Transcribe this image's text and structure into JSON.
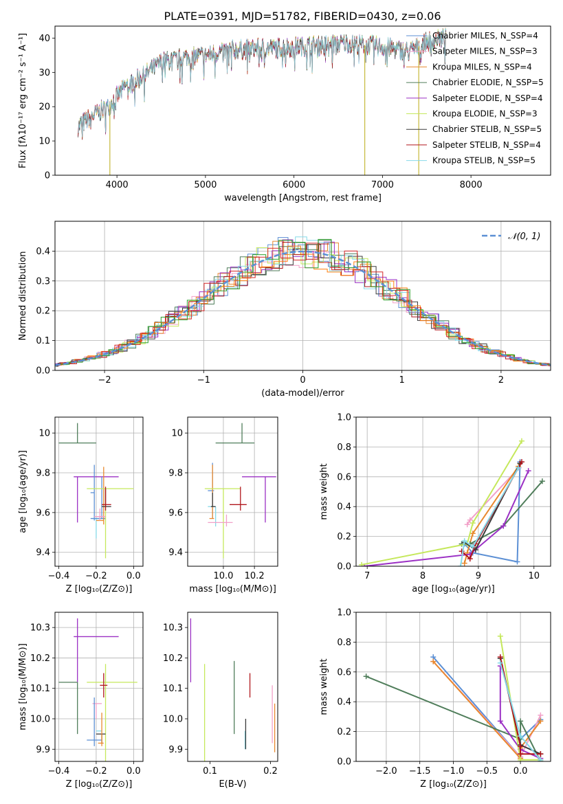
{
  "figure": {
    "title": "PLATE=0391, MJD=51782, FIBERID=0430, z=0.06"
  },
  "colors": {
    "models": [
      "#1f77b4",
      "#e377c2",
      "#ff7f0e",
      "#2ca02c",
      "#9467bd",
      "#bcbd22",
      "#17becf",
      "#8c564b",
      "#d62728",
      "#7f7f7f",
      "#5b8fd4",
      "#f2a0c8",
      "#e8892e",
      "#4f7d5a",
      "#9b30c4",
      "#c5e85b",
      "#3a3a3a",
      "#b0161c",
      "#85d9e8"
    ],
    "gaussian": "#5b8fd4",
    "grid": "#b0b0b0"
  },
  "chart_data": [
    {
      "id": "spectrum",
      "type": "line",
      "xlabel": "wavelength [Angstrom, rest frame]",
      "ylabel": "Flux [fλ10⁻¹⁷ erg cm⁻² s⁻¹ A⁻¹]",
      "xlim": [
        3300,
        8900
      ],
      "ylim": [
        0,
        43.5
      ],
      "xticks": [
        4000,
        5000,
        6000,
        7000,
        8000
      ],
      "yticks": [
        0,
        10,
        20,
        30,
        40
      ],
      "grid": false,
      "legend_position": "top-right",
      "legend": [
        "Chabrier MILES, N_SSP=4",
        "Salpeter MILES, N_SSP=3",
        "Kroupa MILES, N_SSP=4",
        "Chabrier ELODIE, N_SSP=5",
        "Salpeter ELODIE, N_SSP=4",
        "Kroupa ELODIE, N_SSP=3",
        "Chabrier STELIB, N_SSP=5",
        "Salpeter STELIB, N_SSP=4",
        "Kroupa STELIB, N_SSP=5"
      ],
      "legend_colors": [
        "#5b8fd4",
        "#f2a0c8",
        "#e8892e",
        "#4f7d5a",
        "#9b30c4",
        "#c5e85b",
        "#3a3a3a",
        "#b0161c",
        "#85d9e8"
      ],
      "continuum_x": [
        3550,
        3700,
        3900,
        4100,
        4300,
        4500,
        4800,
        5000,
        5300,
        5600,
        6000,
        6300,
        6600,
        7000,
        7300,
        7500,
        7700
      ],
      "continuum_y": [
        14,
        17,
        20,
        26,
        29,
        33,
        34.5,
        35,
        36.5,
        37,
        37.5,
        38,
        38.5,
        37.5,
        36,
        39,
        40
      ],
      "dips": [
        {
          "x": 3920,
          "y": 0
        },
        {
          "x": 6800,
          "y": 0
        },
        {
          "x": 7410,
          "y": 0
        }
      ]
    },
    {
      "id": "residuals",
      "type": "line",
      "xlabel": "(data-model)/error",
      "ylabel": "Normed distribution",
      "xlim": [
        -2.5,
        2.5
      ],
      "ylim": [
        0,
        0.5
      ],
      "xticks": [
        -2,
        -1,
        0,
        1,
        2
      ],
      "xticklabels": [
        "−2",
        "−1",
        "0",
        "1",
        "2"
      ],
      "yticks": [
        0,
        0.1,
        0.2,
        0.3,
        0.4
      ],
      "yticklabels": [
        "0.0",
        "0.1",
        "0.2",
        "0.3",
        "0.4"
      ],
      "grid": true,
      "legend_position": "top-right",
      "legend": [
        "𝒩(0, 1)"
      ],
      "note": "step histograms, one per model, plus dashed standard normal"
    },
    {
      "id": "age-vs-Z",
      "type": "scatter",
      "xlabel": "Z [log₁₀(Z/Z⊙)]",
      "ylabel": "age  [log₁₀(age/yr)]",
      "xlim": [
        -0.42,
        0.05
      ],
      "ylim": [
        9.33,
        10.08
      ],
      "xticks": [
        -0.4,
        -0.2,
        0.0
      ],
      "xticklabels": [
        "−0.4",
        "−0.2",
        "0.0"
      ],
      "yticks": [
        9.4,
        9.6,
        9.8,
        10.0
      ],
      "grid": true,
      "points": [
        {
          "x": -0.3,
          "y": 9.95,
          "xerr": [
            0.1,
            0.1
          ],
          "yerr": [
            0.0,
            0.1
          ],
          "c": "#4f7d5a"
        },
        {
          "x": -0.3,
          "y": 9.78,
          "xerr": [
            0.02,
            0.22
          ],
          "yerr": [
            0.23,
            0.0
          ],
          "c": "#9b30c4"
        },
        {
          "x": -0.21,
          "y": 9.7,
          "xerr": [
            0.02,
            0.0
          ],
          "yerr": [
            0.14,
            0.14
          ],
          "c": "#5b8fd4"
        },
        {
          "x": -0.2,
          "y": 9.57,
          "xerr": [
            0.02,
            0.05
          ],
          "yerr": [
            0.1,
            0.0
          ],
          "c": "#85d9e8"
        },
        {
          "x": -0.17,
          "y": 9.57,
          "xerr": [
            0.06,
            0.02
          ],
          "yerr": [
            0.0,
            0.21
          ],
          "c": "#5b8fd4"
        },
        {
          "x": -0.16,
          "y": 9.56,
          "xerr": [
            0.04,
            0.0
          ],
          "yerr": [
            0.02,
            0.27
          ],
          "c": "#e8892e"
        },
        {
          "x": -0.15,
          "y": 9.72,
          "xerr": [
            0.1,
            0.15
          ],
          "yerr": [
            0.35,
            0.0
          ],
          "c": "#c5e85b"
        },
        {
          "x": -0.15,
          "y": 9.63,
          "xerr": [
            0.02,
            0.03
          ],
          "yerr": [
            0.0,
            0.09
          ],
          "c": "#3a3a3a"
        },
        {
          "x": -0.15,
          "y": 9.64,
          "xerr": [
            0.02,
            0.03
          ],
          "yerr": [
            0.03,
            0.09
          ],
          "c": "#b0161c"
        },
        {
          "x": -0.18,
          "y": 9.58,
          "xerr": [
            0.03,
            0.03
          ],
          "yerr": [
            0.02,
            0.04
          ],
          "c": "#f2a0c8"
        }
      ]
    },
    {
      "id": "age-vs-mass",
      "type": "scatter",
      "xlabel": "mass [log₁₀(M/M⊙)]",
      "ylabel": "",
      "xlim": [
        9.77,
        10.35
      ],
      "ylim": [
        9.33,
        10.08
      ],
      "xticks": [
        10.0,
        10.2
      ],
      "xticklabels": [
        "10.0",
        "10.2"
      ],
      "yticks": [
        9.4,
        9.6,
        9.8,
        10.0
      ],
      "grid": true,
      "points": [
        {
          "x": 10.12,
          "y": 9.95,
          "xerr": [
            0.17,
            0.08
          ],
          "yerr": [
            0.0,
            0.1
          ],
          "c": "#4f7d5a"
        },
        {
          "x": 10.27,
          "y": 9.78,
          "xerr": [
            0.15,
            0.07
          ],
          "yerr": [
            0.23,
            0.0
          ],
          "c": "#9b30c4"
        },
        {
          "x": 9.93,
          "y": 9.71,
          "xerr": [
            0.03,
            0.01
          ],
          "yerr": [
            0.14,
            0.14
          ],
          "c": "#5b8fd4"
        },
        {
          "x": 9.95,
          "y": 9.63,
          "xerr": [
            0.05,
            0.0
          ],
          "yerr": [
            0.1,
            0.0
          ],
          "c": "#85d9e8"
        },
        {
          "x": 9.93,
          "y": 9.57,
          "xerr": [
            0.02,
            0.01
          ],
          "yerr": [
            0.0,
            0.27
          ],
          "c": "#e8892e"
        },
        {
          "x": 10.0,
          "y": 9.72,
          "xerr": [
            0.12,
            0.11
          ],
          "yerr": [
            0.35,
            0.0
          ],
          "c": "#c5e85b"
        },
        {
          "x": 9.93,
          "y": 9.63,
          "xerr": [
            0.01,
            0.02
          ],
          "yerr": [
            0.0,
            0.07
          ],
          "c": "#3a3a3a"
        },
        {
          "x": 10.11,
          "y": 9.64,
          "xerr": [
            0.07,
            0.04
          ],
          "yerr": [
            0.03,
            0.09
          ],
          "c": "#b0161c"
        },
        {
          "x": 10.02,
          "y": 9.55,
          "xerr": [
            0.12,
            0.04
          ],
          "yerr": [
            0.02,
            0.04
          ],
          "c": "#f2a0c8"
        }
      ]
    },
    {
      "id": "mass-weight-vs-age",
      "type": "line",
      "xlabel": "age  [log₁₀(age/yr)]",
      "ylabel": "mass weight",
      "xlim": [
        6.8,
        10.3
      ],
      "ylim": [
        0,
        1.0
      ],
      "xticks": [
        7,
        8,
        9,
        10
      ],
      "yticks": [
        0,
        0.2,
        0.4,
        0.6,
        0.8,
        1.0
      ],
      "yticklabels": [
        "0.0",
        "0.2",
        "0.4",
        "0.6",
        "0.8",
        "1.0"
      ],
      "grid": true,
      "series": [
        {
          "c": "#5b8fd4",
          "x": [
            8.75,
            8.9,
            9.7,
            9.75
          ],
          "y": [
            0.15,
            0.09,
            0.03,
            0.7
          ]
        },
        {
          "c": "#f2a0c8",
          "x": [
            8.8,
            8.85,
            9.73
          ],
          "y": [
            0.28,
            0.31,
            0.66
          ]
        },
        {
          "c": "#e8892e",
          "x": [
            8.75,
            8.8,
            8.9,
            9.72
          ],
          "y": [
            0.02,
            0.09,
            0.22,
            0.67
          ]
        },
        {
          "c": "#4f7d5a",
          "x": [
            8.7,
            8.85,
            9.45,
            10.15
          ],
          "y": [
            0.15,
            0.15,
            0.27,
            0.57
          ]
        },
        {
          "c": "#9b30c4",
          "x": [
            6.95,
            8.85,
            9.45,
            9.9
          ],
          "y": [
            0.0,
            0.08,
            0.27,
            0.64
          ]
        },
        {
          "c": "#c5e85b",
          "x": [
            6.9,
            8.8,
            8.9,
            9.78
          ],
          "y": [
            0.01,
            0.15,
            0.29,
            0.84
          ]
        },
        {
          "c": "#3a3a3a",
          "x": [
            8.75,
            8.95,
            9.75
          ],
          "y": [
            0.16,
            0.11,
            0.69
          ]
        },
        {
          "c": "#b0161c",
          "x": [
            8.7,
            8.85,
            8.95,
            9.78
          ],
          "y": [
            0.1,
            0.05,
            0.15,
            0.7
          ]
        },
        {
          "c": "#85d9e8",
          "x": [
            8.68,
            8.75,
            8.9,
            9.72
          ],
          "y": [
            0.0,
            0.17,
            0.13,
            0.66
          ]
        }
      ]
    },
    {
      "id": "mass-vs-Z",
      "type": "scatter",
      "xlabel": "Z [log₁₀(Z/Z⊙)]",
      "ylabel": "mass [log₁₀(M/M⊙)]",
      "xlim": [
        -0.42,
        0.05
      ],
      "ylim": [
        9.86,
        10.35
      ],
      "xticks": [
        -0.4,
        -0.2,
        0.0
      ],
      "xticklabels": [
        "−0.4",
        "−0.2",
        "0.0"
      ],
      "yticks": [
        9.9,
        10.0,
        10.1,
        10.2,
        10.3
      ],
      "yticklabels": [
        "9.9",
        "10.0",
        "10.1",
        "10.2",
        "10.3"
      ],
      "grid": true,
      "points": [
        {
          "x": -0.3,
          "y": 10.27,
          "xerr": [
            0.02,
            0.22
          ],
          "yerr": [
            0.15,
            0.06
          ],
          "c": "#9b30c4"
        },
        {
          "x": -0.3,
          "y": 10.12,
          "xerr": [
            0.1,
            0.0
          ],
          "yerr": [
            0.17,
            0.0
          ],
          "c": "#4f7d5a"
        },
        {
          "x": -0.15,
          "y": 10.12,
          "xerr": [
            0.1,
            0.17
          ],
          "yerr": [
            0.28,
            0.06
          ],
          "c": "#c5e85b"
        },
        {
          "x": -0.16,
          "y": 10.11,
          "xerr": [
            0.02,
            0.02
          ],
          "yerr": [
            0.04,
            0.04
          ],
          "c": "#b0161c"
        },
        {
          "x": -0.2,
          "y": 10.05,
          "xerr": [
            0.02,
            0.03
          ],
          "yerr": [
            0.05,
            0.0
          ],
          "c": "#f2a0c8"
        },
        {
          "x": -0.17,
          "y": 9.96,
          "xerr": [
            0.03,
            0.0
          ],
          "yerr": [
            0.0,
            0.0
          ],
          "c": "#85d9e8"
        },
        {
          "x": -0.17,
          "y": 9.95,
          "xerr": [
            0.03,
            0.02
          ],
          "yerr": [
            0.03,
            0.0
          ],
          "c": "#3a3a3a"
        },
        {
          "x": -0.21,
          "y": 9.93,
          "xerr": [
            0.04,
            0.04
          ],
          "yerr": [
            0.02,
            0.14
          ],
          "c": "#5b8fd4"
        },
        {
          "x": -0.17,
          "y": 9.92,
          "xerr": [
            0.02,
            0.01
          ],
          "yerr": [
            0.01,
            0.1
          ],
          "c": "#e8892e"
        }
      ]
    },
    {
      "id": "mass-vs-EBV",
      "type": "scatter",
      "xlabel": "E(B-V)",
      "ylabel": "",
      "xlim": [
        0.063,
        0.212
      ],
      "ylim": [
        9.86,
        10.35
      ],
      "xticks": [
        0.1,
        0.2
      ],
      "xticklabels": [
        "0.1",
        "0.2"
      ],
      "yticks": [
        9.9,
        10.0,
        10.1,
        10.2,
        10.3
      ],
      "yticklabels": [
        "9.9",
        "10.0",
        "10.1",
        "10.2",
        "10.3"
      ],
      "grid": false,
      "points": [
        {
          "x": 0.068,
          "y": 10.27,
          "yerr": [
            0.15,
            0.06
          ],
          "c": "#9b30c4"
        },
        {
          "x": 0.091,
          "y": 10.07,
          "yerr": [
            0.22,
            0.11
          ],
          "c": "#c5e85b"
        },
        {
          "x": 0.14,
          "y": 10.12,
          "yerr": [
            0.17,
            0.07
          ],
          "c": "#4f7d5a"
        },
        {
          "x": 0.158,
          "y": 9.96,
          "yerr": [
            0.06,
            0.0
          ],
          "c": "#85d9e8"
        },
        {
          "x": 0.159,
          "y": 9.95,
          "yerr": [
            0.05,
            0.05
          ],
          "c": "#3a3a3a"
        },
        {
          "x": 0.166,
          "y": 10.11,
          "yerr": [
            0.04,
            0.04
          ],
          "c": "#b0161c"
        },
        {
          "x": 0.203,
          "y": 10.05,
          "yerr": [
            0.13,
            0.06
          ],
          "c": "#f2a0c8"
        },
        {
          "x": 0.207,
          "y": 9.95,
          "yerr": [
            0.06,
            0.1
          ],
          "c": "#e8892e"
        }
      ]
    },
    {
      "id": "mass-weight-vs-Z",
      "type": "line",
      "xlabel": "Z [log₁₀(Z/Z⊙)]",
      "ylabel": "mass weight",
      "xlim": [
        -2.45,
        0.45
      ],
      "ylim": [
        0,
        1.0
      ],
      "xticks": [
        -2.0,
        -1.5,
        -1.0,
        -0.5,
        0.0
      ],
      "xticklabels": [
        "−2.0",
        "−1.5",
        "−1.0",
        "−0.5",
        "0.0"
      ],
      "yticks": [
        0,
        0.2,
        0.4,
        0.6,
        0.8,
        1.0
      ],
      "yticklabels": [
        "0.0",
        "0.2",
        "0.4",
        "0.6",
        "0.8",
        "1.0"
      ],
      "grid": true,
      "series": [
        {
          "c": "#5b8fd4",
          "x": [
            -1.3,
            0.0,
            0.0,
            0.3
          ],
          "y": [
            0.7,
            0.03,
            0.15,
            0.28
          ]
        },
        {
          "c": "#f2a0c8",
          "x": [
            -1.3,
            0.0,
            0.3
          ],
          "y": [
            0.67,
            0.03,
            0.31
          ]
        },
        {
          "c": "#e8892e",
          "x": [
            -1.3,
            0.0,
            0.0,
            0.3
          ],
          "y": [
            0.67,
            0.02,
            0.09,
            0.27
          ]
        },
        {
          "c": "#4f7d5a",
          "x": [
            -2.3,
            0.0,
            0.0,
            0.3
          ],
          "y": [
            0.57,
            0.15,
            0.27,
            0.0
          ]
        },
        {
          "c": "#9b30c4",
          "x": [
            -0.3,
            -0.3,
            0.0,
            0.3
          ],
          "y": [
            0.64,
            0.27,
            0.08,
            0.02
          ]
        },
        {
          "c": "#c5e85b",
          "x": [
            -0.3,
            0.0,
            0.3
          ],
          "y": [
            0.84,
            0.01,
            0.01
          ]
        },
        {
          "c": "#3a3a3a",
          "x": [
            -0.3,
            0.0,
            0.3
          ],
          "y": [
            0.69,
            0.11,
            0.05
          ]
        },
        {
          "c": "#b0161c",
          "x": [
            -0.3,
            0.0,
            0.0,
            0.3
          ],
          "y": [
            0.7,
            0.1,
            0.05,
            0.05
          ]
        },
        {
          "c": "#85d9e8",
          "x": [
            -0.3,
            0.0,
            0.3
          ],
          "y": [
            0.66,
            0.17,
            0.01
          ]
        }
      ]
    }
  ]
}
